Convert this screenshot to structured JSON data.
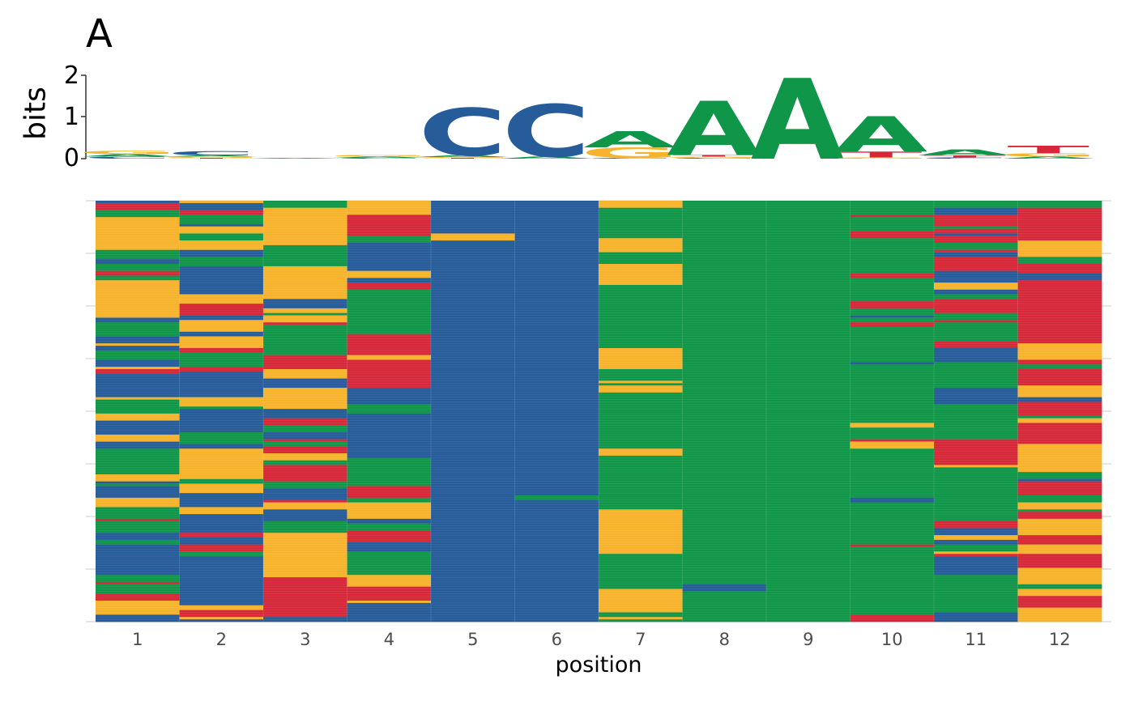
{
  "panel_label": "A",
  "colors": {
    "A": "#109648",
    "C": "#255c99",
    "G": "#f7b32b",
    "T": "#d62839",
    "grid": "#e5e5e5"
  },
  "chart_data": [
    {
      "type": "sequence-logo",
      "ylabel": "bits",
      "ylim": [
        0,
        2
      ],
      "yticks": [
        "0",
        "1",
        "2"
      ],
      "positions": [
        1,
        2,
        3,
        4,
        5,
        6,
        7,
        8,
        9,
        10,
        11,
        12
      ],
      "stacks": [
        [
          {
            "base": "C",
            "bits": 0.05
          },
          {
            "base": "A",
            "bits": 0.06
          },
          {
            "base": "G",
            "bits": 0.08
          }
        ],
        [
          {
            "base": "T",
            "bits": 0.02
          },
          {
            "base": "G",
            "bits": 0.03
          },
          {
            "base": "A",
            "bits": 0.03
          },
          {
            "base": "C",
            "bits": 0.1
          }
        ],
        [
          {
            "base": "A",
            "bits": 0.02
          }
        ],
        [
          {
            "base": "C",
            "bits": 0.02
          },
          {
            "base": "A",
            "bits": 0.03
          },
          {
            "base": "G",
            "bits": 0.04
          }
        ],
        [
          {
            "base": "T",
            "bits": 0.02
          },
          {
            "base": "G",
            "bits": 0.02
          },
          {
            "base": "A",
            "bits": 0.04
          },
          {
            "base": "C",
            "bits": 1.14
          }
        ],
        [
          {
            "base": "A",
            "bits": 0.05
          },
          {
            "base": "C",
            "bits": 1.26
          }
        ],
        [
          {
            "base": "C",
            "bits": 0.02
          },
          {
            "base": "G",
            "bits": 0.25
          },
          {
            "base": "A",
            "bits": 0.39
          }
        ],
        [
          {
            "base": "C",
            "bits": 0.02
          },
          {
            "base": "G",
            "bits": 0.03
          },
          {
            "base": "T",
            "bits": 0.04
          },
          {
            "base": "A",
            "bits": 1.3
          }
        ],
        [
          {
            "base": "A",
            "bits": 1.94
          }
        ],
        [
          {
            "base": "G",
            "bits": 0.03
          },
          {
            "base": "T",
            "bits": 0.14
          },
          {
            "base": "A",
            "bits": 0.85
          }
        ],
        [
          {
            "base": "C",
            "bits": 0.03
          },
          {
            "base": "T",
            "bits": 0.05
          },
          {
            "base": "A",
            "bits": 0.14
          }
        ],
        [
          {
            "base": "A",
            "bits": 0.05
          },
          {
            "base": "G",
            "bits": 0.08
          },
          {
            "base": "T",
            "bits": 0.18
          }
        ]
      ]
    },
    {
      "type": "heatmap",
      "xlabel": "position",
      "x": [
        "1",
        "2",
        "3",
        "4",
        "5",
        "6",
        "7",
        "8",
        "9",
        "10",
        "11",
        "12"
      ],
      "n_sequences": 180,
      "base_frequencies": [
        {
          "A": 0.38,
          "C": 0.28,
          "G": 0.3,
          "T": 0.04
        },
        {
          "A": 0.22,
          "C": 0.48,
          "G": 0.2,
          "T": 0.1
        },
        {
          "A": 0.26,
          "C": 0.28,
          "G": 0.28,
          "T": 0.18
        },
        {
          "A": 0.24,
          "C": 0.3,
          "G": 0.3,
          "T": 0.16
        },
        {
          "A": 0.02,
          "C": 0.93,
          "G": 0.03,
          "T": 0.02
        },
        {
          "A": 0.05,
          "C": 0.93,
          "G": 0.01,
          "T": 0.01
        },
        {
          "A": 0.54,
          "C": 0.02,
          "G": 0.43,
          "T": 0.01
        },
        {
          "A": 0.9,
          "C": 0.02,
          "G": 0.03,
          "T": 0.05
        },
        {
          "A": 0.99,
          "C": 0.0,
          "G": 0.0,
          "T": 0.01
        },
        {
          "A": 0.78,
          "C": 0.02,
          "G": 0.06,
          "T": 0.14
        },
        {
          "A": 0.46,
          "C": 0.16,
          "G": 0.1,
          "T": 0.28
        },
        {
          "A": 0.15,
          "C": 0.08,
          "G": 0.34,
          "T": 0.43
        }
      ]
    }
  ]
}
